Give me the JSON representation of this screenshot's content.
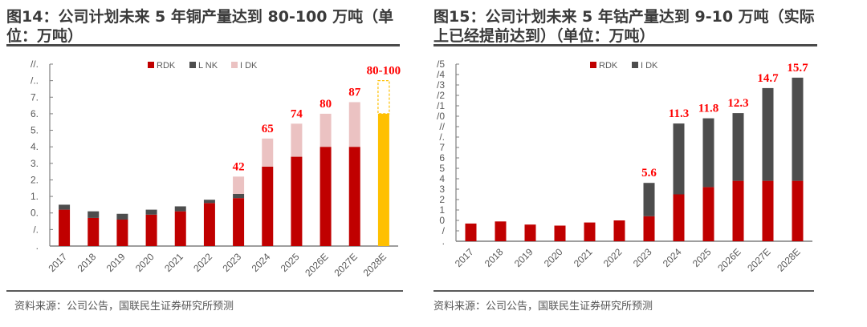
{
  "panels": [
    {
      "title": "图14：公司计划未来 5 年铜产量达到 80-100 万吨（单位：万吨）",
      "source": "资料来源：公司公告，国联民生证券研究所预测"
    },
    {
      "title": "图15：公司计划未来 5 年钴产量达到 9-10 万吨（实际上已经提前达到）（单位：万吨）",
      "source": "资料来源：公司公告，国联民生证券研究所预测"
    }
  ],
  "colors": {
    "red": "#c00000",
    "gray": "#4d4d4d",
    "pink": "#ebc2c2",
    "yellow": "#ffc000",
    "label_red": "#ff0000",
    "axis": "#7f7f7f"
  },
  "chart_data": [
    {
      "type": "bar",
      "stacked": true,
      "title": "图14：公司计划未来 5 年铜产量达到 80-100 万吨（单位：万吨）",
      "xlabel": "",
      "ylabel": "万吨",
      "categories": [
        "2017",
        "2018",
        "2019",
        "2020",
        "2021",
        "2022",
        "2023",
        "2024",
        "2025",
        "2026E",
        "2027E",
        "2028E"
      ],
      "ylim": [
        0,
        110
      ],
      "yticks": [
        0,
        10,
        20,
        30,
        40,
        50,
        60,
        70,
        80,
        90,
        100,
        110
      ],
      "ytick_labels": [
        ".",
        "/.",
        "0.",
        "1.",
        "2.",
        "3.",
        "4.",
        "5.",
        "6.",
        "7.",
        "/..",
        "//."
      ],
      "legend_position": "top-right",
      "series": [
        {
          "name": "RDK",
          "color_key": "red",
          "values": [
            22,
            17,
            16,
            19,
            21,
            26,
            29,
            48,
            54,
            60,
            60,
            null
          ]
        },
        {
          "name": "L NK",
          "color_key": "gray",
          "values": [
            3,
            4,
            3.5,
            3,
            3,
            2,
            2.5,
            0,
            0,
            0,
            0,
            null
          ]
        },
        {
          "name": "I DK",
          "color_key": "pink",
          "values": [
            0,
            0,
            0,
            0,
            0,
            0,
            10.5,
            17,
            20,
            20,
            27,
            null
          ]
        },
        {
          "name": "2028E target (low)",
          "color_key": "yellow",
          "legend": false,
          "values": [
            null,
            null,
            null,
            null,
            null,
            null,
            null,
            null,
            null,
            null,
            null,
            80
          ]
        },
        {
          "name": "2028E target range (dashed)",
          "color_key": "yellow",
          "legend": false,
          "dashed": true,
          "values": [
            null,
            null,
            null,
            null,
            null,
            null,
            null,
            null,
            null,
            null,
            null,
            20
          ]
        }
      ],
      "totals": [
        25,
        21,
        19.5,
        22,
        24,
        28,
        42,
        65,
        74,
        80,
        87,
        100
      ],
      "data_labels": [
        {
          "category": "2023",
          "text": "42"
        },
        {
          "category": "2024",
          "text": "65"
        },
        {
          "category": "2025",
          "text": "74"
        },
        {
          "category": "2026E",
          "text": "80"
        },
        {
          "category": "2027E",
          "text": "87"
        },
        {
          "category": "2028E",
          "text": "80-100"
        }
      ]
    },
    {
      "type": "bar",
      "stacked": true,
      "title": "图15：公司计划未来 5 年钴产量达到 9-10 万吨（实际上已经提前达到）（单位：万吨）",
      "xlabel": "",
      "ylabel": "万吨",
      "categories": [
        "2017",
        "2018",
        "2019",
        "2020",
        "2021",
        "2022",
        "2023",
        "2024",
        "2025",
        "2026E",
        "2027E",
        "2028E"
      ],
      "ylim": [
        0,
        17
      ],
      "yticks": [
        0,
        1,
        2,
        3,
        4,
        5,
        6,
        7,
        8,
        9,
        10,
        11,
        12,
        13,
        14,
        15,
        16,
        17
      ],
      "ytick_labels": [
        ".",
        "/",
        "0",
        "1",
        "2",
        "3",
        "4",
        "5",
        "6",
        "7",
        "/.",
        "//",
        "/0",
        "/1",
        "/2",
        "/3",
        "/4",
        "/5"
      ],
      "legend_position": "top-right",
      "series": [
        {
          "name": "RDK",
          "color_key": "red",
          "values": [
            1.7,
            1.9,
            1.6,
            1.5,
            1.8,
            2.0,
            2.4,
            4.5,
            5.2,
            5.8,
            5.8,
            5.8
          ]
        },
        {
          "name": "I DK",
          "color_key": "gray",
          "values": [
            0,
            0,
            0,
            0,
            0,
            0,
            3.2,
            6.8,
            6.6,
            6.5,
            8.9,
            9.9
          ]
        }
      ],
      "totals": [
        1.7,
        1.9,
        1.6,
        1.5,
        1.8,
        2.0,
        5.6,
        11.3,
        11.8,
        12.3,
        14.7,
        15.7
      ],
      "data_labels": [
        {
          "category": "2023",
          "text": "5.6"
        },
        {
          "category": "2024",
          "text": "11.3"
        },
        {
          "category": "2025",
          "text": "11.8"
        },
        {
          "category": "2026E",
          "text": "12.3"
        },
        {
          "category": "2027E",
          "text": "14.7"
        },
        {
          "category": "2028E",
          "text": "15.7"
        }
      ]
    }
  ]
}
